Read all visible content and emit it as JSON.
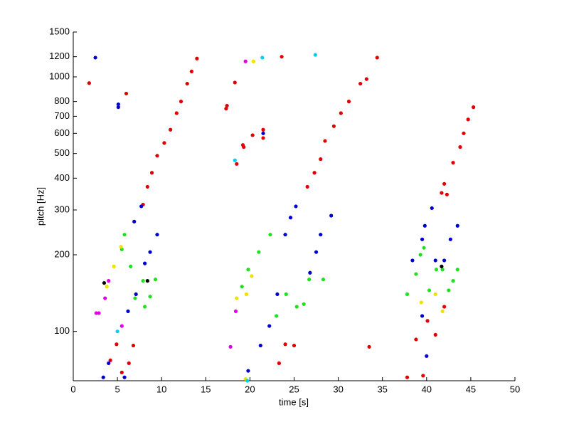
{
  "chart_data": {
    "type": "scatter",
    "x_label": "time [s]",
    "y_label": "pitch [Hz]",
    "xlim": [
      0,
      50
    ],
    "xticks": [
      0,
      5,
      10,
      15,
      20,
      25,
      30,
      35,
      40,
      45,
      50
    ],
    "ylim": [
      64,
      1500
    ],
    "yticks": [
      100,
      200,
      300,
      400,
      500,
      600,
      700,
      800,
      1000,
      1200,
      1500
    ],
    "y_scale": "log",
    "grid": false,
    "series": [
      {
        "color": "#e00000",
        "x": [
          1.8,
          4.2,
          4.9,
          6.8,
          7.9,
          8.4,
          8.9,
          9.5,
          10.3,
          11.0,
          11.7,
          12.2,
          12.9,
          13.4,
          14.0,
          6.0,
          5.5,
          6.3,
          17.3,
          17.4,
          18.3,
          18.5,
          19.2,
          19.3,
          20.3,
          21.5,
          21.5,
          23.6,
          26.5,
          27.3,
          28.0,
          28.5,
          29.5,
          30.3,
          31.2,
          32.5,
          33.2,
          34.4,
          33.5,
          23.3,
          24.0,
          25.0,
          37.8,
          38.8,
          39.6,
          41.0,
          41.7,
          42.0,
          42.3,
          43.0,
          43.8,
          44.2,
          44.7,
          45.3,
          40.1,
          42.0
        ],
        "y": [
          945,
          77,
          89,
          88,
          315,
          370,
          420,
          490,
          550,
          620,
          720,
          800,
          940,
          1050,
          1180,
          860,
          69,
          75,
          750,
          770,
          950,
          455,
          540,
          530,
          590,
          575,
          620,
          1200,
          370,
          420,
          475,
          560,
          640,
          720,
          800,
          940,
          980,
          1190,
          87,
          75,
          89,
          88,
          66,
          93,
          67,
          97,
          350,
          380,
          345,
          460,
          530,
          600,
          680,
          760,
          110,
          125
        ]
      },
      {
        "color": "#0000d0",
        "x": [
          2.5,
          5.1,
          5.1,
          3.4,
          4.0,
          5.8,
          6.9,
          7.7,
          8.1,
          8.7,
          9.5,
          6.2,
          7.1,
          19.8,
          21.2,
          22.2,
          23.1,
          24.0,
          24.6,
          25.2,
          26.8,
          27.5,
          28.0,
          29.2,
          21.5,
          38.4,
          39.5,
          40.0,
          40.6,
          39.5,
          39.8,
          41.0,
          42.0,
          42.7,
          43.5
        ],
        "y": [
          1190,
          780,
          760,
          66,
          75,
          66,
          270,
          310,
          185,
          205,
          240,
          120,
          140,
          70,
          88,
          105,
          140,
          240,
          280,
          310,
          170,
          205,
          240,
          285,
          600,
          190,
          115,
          80,
          305,
          230,
          260,
          190,
          190,
          230,
          260
        ]
      },
      {
        "color": "#20e020",
        "x": [
          5.5,
          5.8,
          6.5,
          7.0,
          7.9,
          8.1,
          8.7,
          9.3,
          19.1,
          19.8,
          21.0,
          22.3,
          23.0,
          24.1,
          25.3,
          26.1,
          26.7,
          28.3,
          37.8,
          38.8,
          39.3,
          39.7,
          40.3,
          41.1,
          41.8,
          42.5,
          43.0,
          43.5
        ],
        "y": [
          210,
          240,
          180,
          135,
          158,
          125,
          137,
          160,
          150,
          175,
          205,
          240,
          115,
          140,
          125,
          128,
          160,
          160,
          140,
          168,
          200,
          213,
          145,
          175,
          175,
          145,
          158,
          175
        ]
      },
      {
        "color": "#f0e000",
        "x": [
          3.8,
          4.6,
          5.4,
          18.5,
          19.6,
          20.2,
          20.4,
          39.4,
          41.0,
          41.8,
          19.5
        ],
        "y": [
          150,
          180,
          215,
          135,
          140,
          165,
          1150,
          130,
          140,
          120,
          65
        ]
      },
      {
        "color": "#e000e0",
        "x": [
          2.6,
          2.9,
          3.6,
          4.0,
          5.5,
          19.5,
          17.8,
          18.4
        ],
        "y": [
          118,
          118,
          135,
          158,
          105,
          1150,
          87,
          120
        ]
      },
      {
        "color": "#00d0f0",
        "x": [
          21.4,
          27.4,
          18.3,
          5.0,
          19.7
        ],
        "y": [
          1190,
          1220,
          470,
          100,
          64
        ]
      },
      {
        "color": "#000000",
        "x": [
          8.4,
          41.7,
          3.5
        ],
        "y": [
          158,
          180,
          155
        ]
      }
    ]
  }
}
